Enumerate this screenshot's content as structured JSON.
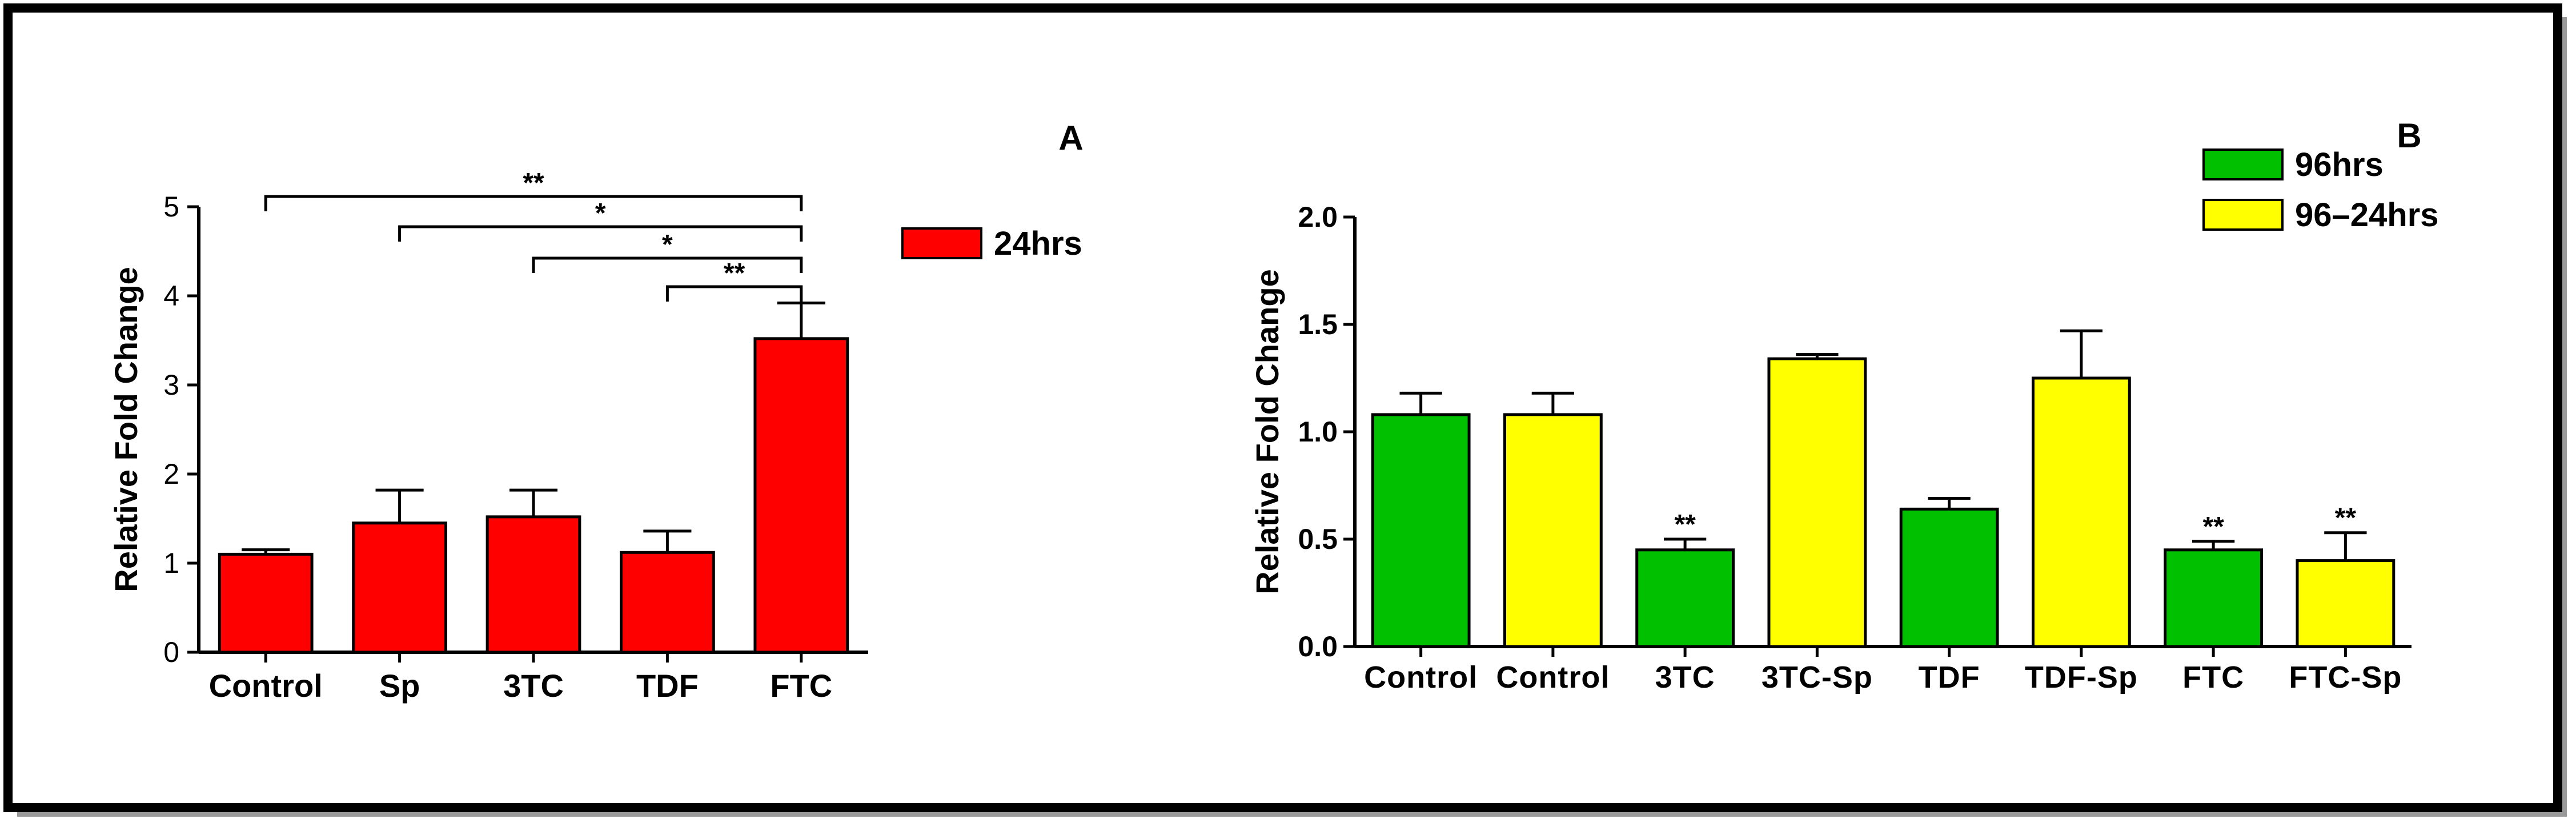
{
  "chart_data": [
    {
      "panel_label": "A",
      "type": "bar",
      "categories": [
        "Control",
        "Sp",
        "3TC",
        "TDF",
        "FTC"
      ],
      "series": [
        {
          "name": "24hrs",
          "color": "#ff0000",
          "values": [
            1.1,
            1.45,
            1.52,
            1.12,
            3.52
          ],
          "errors": [
            0.05,
            0.37,
            0.3,
            0.24,
            0.4
          ]
        }
      ],
      "ylabel": "Relative Fold Change",
      "ylim": [
        0,
        5
      ],
      "yticks": [
        "0",
        "1",
        "2",
        "3",
        "4",
        "5"
      ],
      "grid": false,
      "legend_position": "top-right",
      "comparisons": [
        {
          "from": "Control",
          "to": "FTC",
          "label": "**"
        },
        {
          "from": "Sp",
          "to": "FTC",
          "label": "*"
        },
        {
          "from": "3TC",
          "to": "FTC",
          "label": "*"
        },
        {
          "from": "TDF",
          "to": "FTC",
          "label": "**"
        }
      ]
    },
    {
      "panel_label": "B",
      "type": "bar",
      "categories": [
        "Control",
        "Control",
        "3TC",
        "3TC-Sp",
        "TDF",
        "TDF-Sp",
        "FTC",
        "FTC-Sp"
      ],
      "series": [
        {
          "name": "96hrs",
          "color": "#00c000"
        },
        {
          "name": "96–24hrs",
          "color": "#ffff00"
        }
      ],
      "bar_series": [
        0,
        1,
        0,
        1,
        0,
        1,
        0,
        1
      ],
      "values": [
        1.08,
        1.08,
        0.45,
        1.34,
        0.64,
        1.25,
        0.45,
        0.4
      ],
      "errors": [
        0.1,
        0.1,
        0.05,
        0.02,
        0.05,
        0.22,
        0.04,
        0.13
      ],
      "annotations": [
        "",
        "",
        "**",
        "",
        "",
        "",
        "**",
        "**"
      ],
      "ylabel": "Relative Fold Change",
      "ylim": [
        0,
        2
      ],
      "yticks": [
        "0.0",
        "0.5",
        "1.0",
        "1.5",
        "2.0"
      ],
      "grid": false,
      "legend_position": "top-right"
    }
  ]
}
